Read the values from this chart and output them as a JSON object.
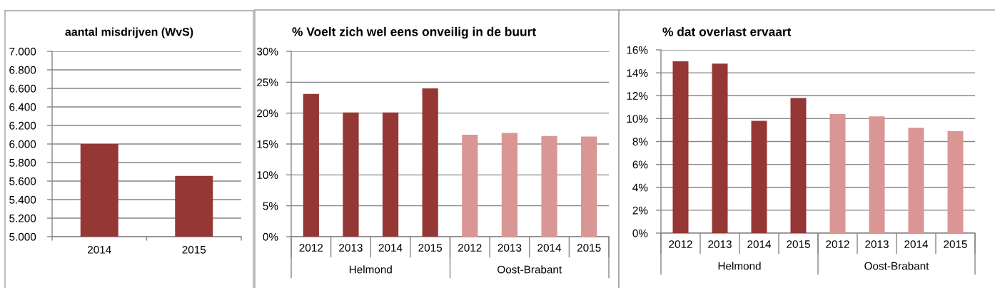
{
  "chart_data": [
    {
      "type": "bar",
      "title": "aantal misdrijven (WvS)",
      "categories": [
        "2014",
        "2015"
      ],
      "values": [
        6000,
        5655
      ],
      "color": "#953735",
      "ylim": [
        5000,
        7000
      ],
      "yticks": [
        {
          "value": 5000,
          "label": "5.000"
        },
        {
          "value": 5200,
          "label": "5.200"
        },
        {
          "value": 5400,
          "label": "5.400"
        },
        {
          "value": 5600,
          "label": "5.600"
        },
        {
          "value": 5800,
          "label": "5.800"
        },
        {
          "value": 6000,
          "label": "6.000"
        },
        {
          "value": 6200,
          "label": "6.200"
        },
        {
          "value": 6400,
          "label": "6.400"
        },
        {
          "value": 6600,
          "label": "6.600"
        },
        {
          "value": 6800,
          "label": "6.800"
        },
        {
          "value": 7000,
          "label": "7.000"
        }
      ],
      "grid": "y"
    },
    {
      "type": "bar",
      "title": "% Voelt zich wel eens onveilig in de buurt",
      "categories": [
        "2012",
        "2013",
        "2014",
        "2015",
        "2012",
        "2013",
        "2014",
        "2015"
      ],
      "series": [
        {
          "name": "Helmond",
          "color": "#953735",
          "values": [
            23.1,
            20.1,
            20.1,
            24.0,
            null,
            null,
            null,
            null
          ]
        },
        {
          "name": "Oost-Brabant",
          "color": "#d99694",
          "values": [
            null,
            null,
            null,
            null,
            16.5,
            16.8,
            16.3,
            16.2
          ]
        }
      ],
      "ylim": [
        0,
        30
      ],
      "yticks": [
        {
          "value": 0,
          "label": "0%"
        },
        {
          "value": 5,
          "label": "5%"
        },
        {
          "value": 10,
          "label": "10%"
        },
        {
          "value": 15,
          "label": "15%"
        },
        {
          "value": 20,
          "label": "20%"
        },
        {
          "value": 25,
          "label": "25%"
        },
        {
          "value": 30,
          "label": "30%"
        }
      ],
      "grid": "y"
    },
    {
      "type": "bar",
      "title": "% dat overlast ervaart",
      "categories": [
        "2012",
        "2013",
        "2014",
        "2015",
        "2012",
        "2013",
        "2014",
        "2015"
      ],
      "series": [
        {
          "name": "Helmond",
          "color": "#953735",
          "values": [
            15.0,
            14.8,
            9.8,
            11.8,
            null,
            null,
            null,
            null
          ]
        },
        {
          "name": "Oost-Brabant",
          "color": "#d99694",
          "values": [
            null,
            null,
            null,
            null,
            10.4,
            10.2,
            9.2,
            8.9
          ]
        }
      ],
      "ylim": [
        0,
        16
      ],
      "yticks": [
        {
          "value": 0,
          "label": "0%"
        },
        {
          "value": 2,
          "label": "2%"
        },
        {
          "value": 4,
          "label": "4%"
        },
        {
          "value": 6,
          "label": "6%"
        },
        {
          "value": 8,
          "label": "8%"
        },
        {
          "value": 10,
          "label": "10%"
        },
        {
          "value": 12,
          "label": "12%"
        },
        {
          "value": 14,
          "label": "14%"
        },
        {
          "value": 16,
          "label": "16%"
        }
      ],
      "grid": "y"
    }
  ]
}
